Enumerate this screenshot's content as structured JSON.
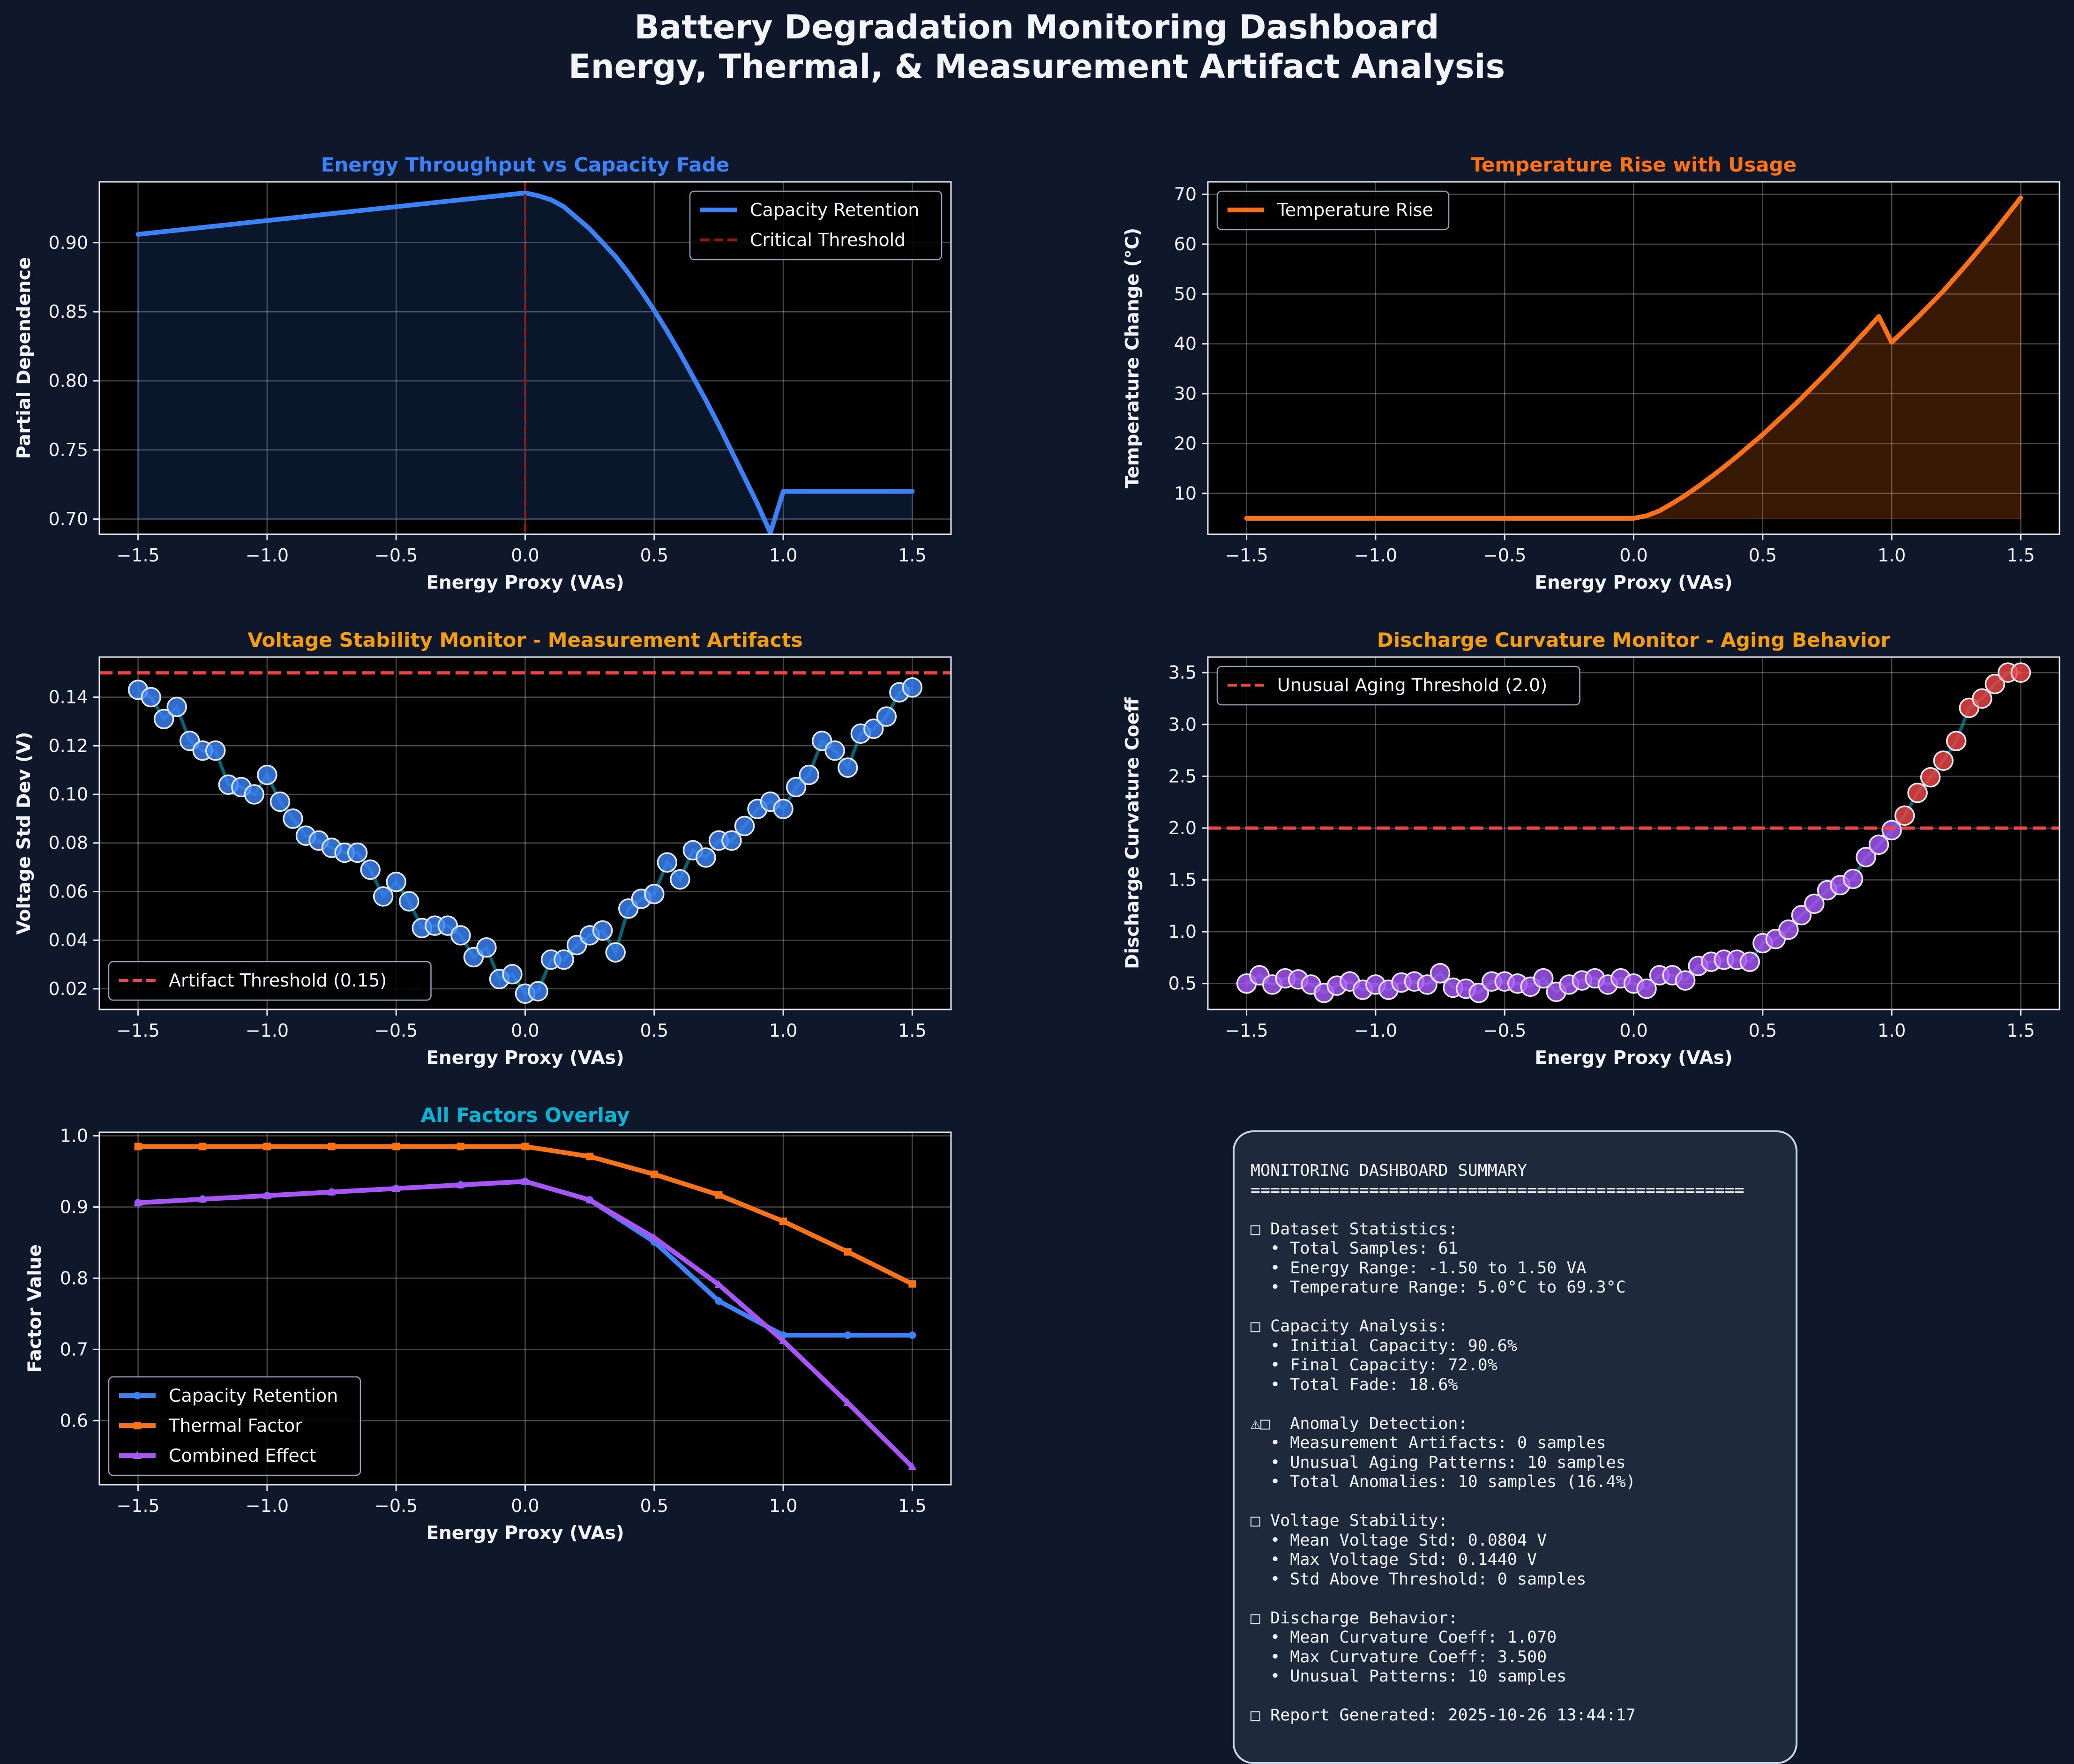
{
  "dashboard": {
    "title_line1": "Battery Degradation Monitoring Dashboard",
    "title_line2": "Energy, Thermal, & Measurement Artifact Analysis"
  },
  "colors": {
    "background": "#0f172a",
    "plot_bg": "#000000",
    "blue": "#3b82f6",
    "orange": "#f97316",
    "purple": "#a855f7",
    "amber": "#f59e0b",
    "cyan": "#06b6d4",
    "red": "#ef4444",
    "dark_red": "#8b1a1a"
  },
  "chart_data": [
    {
      "id": "capacity",
      "type": "line",
      "title": "Energy Throughput vs Capacity Fade",
      "title_color": "#3b82f6",
      "xlabel": "Energy Proxy (VAs)",
      "ylabel": "Partial Dependence",
      "xlim": [
        -1.65,
        1.65
      ],
      "ylim": [
        0.689,
        0.944
      ],
      "xticks": [
        -1.5,
        -1.0,
        -0.5,
        0.0,
        0.5,
        1.0,
        1.5
      ],
      "xtick_labels": [
        "−1.5",
        "−1.0",
        "−0.5",
        "0.0",
        "0.5",
        "1.0",
        "1.5"
      ],
      "yticks": [
        0.7,
        0.75,
        0.8,
        0.85,
        0.9
      ],
      "ytick_labels": [
        "0.70",
        "0.75",
        "0.80",
        "0.85",
        "0.90"
      ],
      "grid": true,
      "legend_position": "top-right",
      "series": [
        {
          "name": "Capacity Retention",
          "color": "#3b82f6",
          "fill_to": 0.7,
          "points": [
            [
              -1.5,
              0.906
            ],
            [
              -1.0,
              0.916
            ],
            [
              -0.5,
              0.926
            ],
            [
              0.0,
              0.936
            ],
            [
              0.05,
              0.934
            ],
            [
              0.1,
              0.931
            ],
            [
              0.15,
              0.926
            ],
            [
              0.2,
              0.918
            ],
            [
              0.25,
              0.91
            ],
            [
              0.3,
              0.9
            ],
            [
              0.35,
              0.89
            ],
            [
              0.4,
              0.878
            ],
            [
              0.45,
              0.865
            ],
            [
              0.5,
              0.851
            ],
            [
              0.55,
              0.836
            ],
            [
              0.6,
              0.82
            ],
            [
              0.65,
              0.803
            ],
            [
              0.7,
              0.786
            ],
            [
              0.75,
              0.768
            ],
            [
              0.8,
              0.749
            ],
            [
              0.85,
              0.73
            ],
            [
              0.9,
              0.711
            ],
            [
              0.95,
              0.69
            ],
            [
              1.0,
              0.72
            ],
            [
              1.5,
              0.72
            ]
          ]
        }
      ],
      "vlines": [
        {
          "name": "Critical Threshold",
          "x": 0.0,
          "color": "#8b1a1a"
        }
      ]
    },
    {
      "id": "temperature",
      "type": "area",
      "title": "Temperature Rise with Usage",
      "title_color": "#f97316",
      "xlabel": "Energy Proxy (VAs)",
      "ylabel": "Temperature Change (°C)",
      "xlim": [
        -1.65,
        1.65
      ],
      "ylim": [
        1.8,
        72.5
      ],
      "xticks": [
        -1.5,
        -1.0,
        -0.5,
        0.0,
        0.5,
        1.0,
        1.5
      ],
      "xtick_labels": [
        "−1.5",
        "−1.0",
        "−0.5",
        "0.0",
        "0.5",
        "1.0",
        "1.5"
      ],
      "yticks": [
        10,
        20,
        30,
        40,
        50,
        60,
        70
      ],
      "ytick_labels": [
        "10",
        "20",
        "30",
        "40",
        "50",
        "60",
        "70"
      ],
      "grid": true,
      "legend_position": "top-left",
      "series": [
        {
          "name": "Temperature Rise",
          "color": "#f97316",
          "fill_to": 5.0,
          "points": [
            [
              -1.5,
              5.0
            ],
            [
              -1.0,
              5.0
            ],
            [
              -0.5,
              5.0
            ],
            [
              0.0,
              5.0
            ],
            [
              0.05,
              5.5
            ],
            [
              0.1,
              6.5
            ],
            [
              0.15,
              8.0
            ],
            [
              0.2,
              9.6
            ],
            [
              0.25,
              11.4
            ],
            [
              0.3,
              13.3
            ],
            [
              0.35,
              15.3
            ],
            [
              0.4,
              17.4
            ],
            [
              0.45,
              19.6
            ],
            [
              0.5,
              21.8
            ],
            [
              0.55,
              24.2
            ],
            [
              0.6,
              26.6
            ],
            [
              0.65,
              29.1
            ],
            [
              0.7,
              31.7
            ],
            [
              0.75,
              34.3
            ],
            [
              0.8,
              37.0
            ],
            [
              0.85,
              39.8
            ],
            [
              0.9,
              42.6
            ],
            [
              0.95,
              45.5
            ],
            [
              1.0,
              40.3
            ],
            [
              1.1,
              45.3
            ],
            [
              1.2,
              50.6
            ],
            [
              1.3,
              56.5
            ],
            [
              1.4,
              62.7
            ],
            [
              1.5,
              69.3
            ]
          ]
        }
      ]
    },
    {
      "id": "voltage",
      "type": "scatter",
      "title": "Voltage Stability Monitor - Measurement Artifacts",
      "title_color": "#f59e0b",
      "xlabel": "Energy Proxy (VAs)",
      "ylabel": "Voltage Std Dev (V)",
      "xlim": [
        -1.65,
        1.65
      ],
      "ylim": [
        0.0115,
        0.1565
      ],
      "xticks": [
        -1.5,
        -1.0,
        -0.5,
        0.0,
        0.5,
        1.0,
        1.5
      ],
      "xtick_labels": [
        "−1.5",
        "−1.0",
        "−0.5",
        "0.0",
        "0.5",
        "1.0",
        "1.5"
      ],
      "yticks": [
        0.02,
        0.04,
        0.06,
        0.08,
        0.1,
        0.12,
        0.14
      ],
      "ytick_labels": [
        "0.02",
        "0.04",
        "0.06",
        "0.08",
        "0.10",
        "0.12",
        "0.14"
      ],
      "grid": true,
      "legend_position": "bottom-left",
      "x_start": -1.5,
      "x_step": 0.05,
      "marker_color": "#3b82f6",
      "line_color": "#06b6d4",
      "values": [
        0.143,
        0.14,
        0.131,
        0.136,
        0.122,
        0.118,
        0.118,
        0.104,
        0.103,
        0.1,
        0.108,
        0.097,
        0.09,
        0.083,
        0.081,
        0.078,
        0.076,
        0.076,
        0.069,
        0.058,
        0.064,
        0.056,
        0.045,
        0.046,
        0.046,
        0.042,
        0.033,
        0.037,
        0.024,
        0.026,
        0.018,
        0.019,
        0.032,
        0.032,
        0.038,
        0.042,
        0.044,
        0.035,
        0.053,
        0.057,
        0.059,
        0.072,
        0.065,
        0.077,
        0.074,
        0.081,
        0.081,
        0.087,
        0.094,
        0.097,
        0.094,
        0.103,
        0.108,
        0.122,
        0.118,
        0.111,
        0.125,
        0.127,
        0.132,
        0.142,
        0.144
      ],
      "hlines": [
        {
          "name": "Artifact Threshold (0.15)",
          "y": 0.15,
          "color": "#ef4444"
        }
      ]
    },
    {
      "id": "curvature",
      "type": "scatter",
      "title": "Discharge Curvature Monitor - Aging Behavior",
      "title_color": "#f59e0b",
      "xlabel": "Energy Proxy (VAs)",
      "ylabel": "Discharge Curvature Coeff",
      "xlim": [
        -1.65,
        1.65
      ],
      "ylim": [
        0.25,
        3.65
      ],
      "xticks": [
        -1.5,
        -1.0,
        -0.5,
        0.0,
        0.5,
        1.0,
        1.5
      ],
      "xtick_labels": [
        "−1.5",
        "−1.0",
        "−0.5",
        "0.0",
        "0.5",
        "1.0",
        "1.5"
      ],
      "yticks": [
        0.5,
        1.0,
        1.5,
        2.0,
        2.5,
        3.0,
        3.5
      ],
      "ytick_labels": [
        "0.5",
        "1.0",
        "1.5",
        "2.0",
        "2.5",
        "3.0",
        "3.5"
      ],
      "grid": true,
      "legend_position": "top-left",
      "x_start": -1.5,
      "x_step": 0.05,
      "marker_color": "#a855f7",
      "anomaly_color": "#ef4444",
      "threshold": 2.0,
      "line_color": "#06b6d4",
      "values": [
        0.5,
        0.58,
        0.49,
        0.55,
        0.54,
        0.49,
        0.41,
        0.48,
        0.52,
        0.44,
        0.49,
        0.44,
        0.51,
        0.52,
        0.49,
        0.6,
        0.46,
        0.45,
        0.41,
        0.52,
        0.52,
        0.5,
        0.47,
        0.55,
        0.42,
        0.49,
        0.53,
        0.55,
        0.49,
        0.55,
        0.5,
        0.45,
        0.58,
        0.58,
        0.53,
        0.67,
        0.71,
        0.73,
        0.73,
        0.71,
        0.89,
        0.93,
        1.02,
        1.16,
        1.27,
        1.4,
        1.45,
        1.51,
        1.72,
        1.84,
        1.98,
        2.12,
        2.34,
        2.49,
        2.65,
        2.84,
        3.16,
        3.25,
        3.39,
        3.5,
        3.5
      ],
      "hlines": [
        {
          "name": "Unusual Aging Threshold (2.0)",
          "y": 2.0,
          "color": "#ef4444"
        }
      ]
    },
    {
      "id": "overlay",
      "type": "line",
      "title": "All Factors Overlay",
      "title_color": "#06b6d4",
      "xlabel": "Energy Proxy (VAs)",
      "ylabel": "Factor Value",
      "xlim": [
        -1.65,
        1.65
      ],
      "ylim": [
        0.51,
        1.005
      ],
      "xticks": [
        -1.5,
        -1.0,
        -0.5,
        0.0,
        0.5,
        1.0,
        1.5
      ],
      "xtick_labels": [
        "−1.5",
        "−1.0",
        "−0.5",
        "0.0",
        "0.5",
        "1.0",
        "1.5"
      ],
      "yticks": [
        0.6,
        0.7,
        0.8,
        0.9,
        1.0
      ],
      "ytick_labels": [
        "0.6",
        "0.7",
        "0.8",
        "0.9",
        "1.0"
      ],
      "grid": true,
      "legend_position": "bottom-left",
      "series": [
        {
          "name": "Capacity Retention",
          "color": "#3b82f6",
          "marker": "circle",
          "points": [
            [
              -1.5,
              0.906
            ],
            [
              -1.25,
              0.911
            ],
            [
              -1.0,
              0.916
            ],
            [
              -0.75,
              0.921
            ],
            [
              -0.5,
              0.926
            ],
            [
              -0.25,
              0.931
            ],
            [
              0.0,
              0.936
            ],
            [
              0.25,
              0.91
            ],
            [
              0.5,
              0.851
            ],
            [
              0.75,
              0.768
            ],
            [
              1.0,
              0.72
            ],
            [
              1.25,
              0.72
            ],
            [
              1.5,
              0.72
            ]
          ]
        },
        {
          "name": "Thermal Factor",
          "color": "#f97316",
          "marker": "square",
          "points": [
            [
              -1.5,
              0.985
            ],
            [
              -1.25,
              0.985
            ],
            [
              -1.0,
              0.985
            ],
            [
              -0.75,
              0.985
            ],
            [
              -0.5,
              0.985
            ],
            [
              -0.25,
              0.985
            ],
            [
              0.0,
              0.985
            ],
            [
              0.25,
              0.971
            ],
            [
              0.5,
              0.946
            ],
            [
              0.75,
              0.917
            ],
            [
              1.0,
              0.88
            ],
            [
              1.25,
              0.837
            ],
            [
              1.5,
              0.792
            ]
          ]
        },
        {
          "name": "Combined Effect",
          "color": "#a855f7",
          "marker": "triangle",
          "points": [
            [
              -1.5,
              0.906
            ],
            [
              -1.25,
              0.911
            ],
            [
              -1.0,
              0.916
            ],
            [
              -0.75,
              0.921
            ],
            [
              -0.5,
              0.926
            ],
            [
              -0.25,
              0.931
            ],
            [
              0.0,
              0.936
            ],
            [
              0.25,
              0.91
            ],
            [
              0.5,
              0.857
            ],
            [
              0.75,
              0.791
            ],
            [
              1.0,
              0.712
            ],
            [
              1.25,
              0.625
            ],
            [
              1.5,
              0.535
            ]
          ]
        }
      ]
    }
  ],
  "summary": {
    "text": "MONITORING DASHBOARD SUMMARY\n==================================================\n\n□ Dataset Statistics:\n  • Total Samples: 61\n  • Energy Range: -1.50 to 1.50 VA\n  • Temperature Range: 5.0°C to 69.3°C\n\n□ Capacity Analysis:\n  • Initial Capacity: 90.6%\n  • Final Capacity: 72.0%\n  • Total Fade: 18.6%\n\n⚠□  Anomaly Detection:\n  • Measurement Artifacts: 0 samples\n  • Unusual Aging Patterns: 10 samples\n  • Total Anomalies: 10 samples (16.4%)\n\n□ Voltage Stability:\n  • Mean Voltage Std: 0.0804 V\n  • Max Voltage Std: 0.1440 V\n  • Std Above Threshold: 0 samples\n\n□ Discharge Behavior:\n  • Mean Curvature Coeff: 1.070\n  • Max Curvature Coeff: 3.500\n  • Unusual Patterns: 10 samples\n\n□ Report Generated: 2025-10-26 13:44:17"
  }
}
